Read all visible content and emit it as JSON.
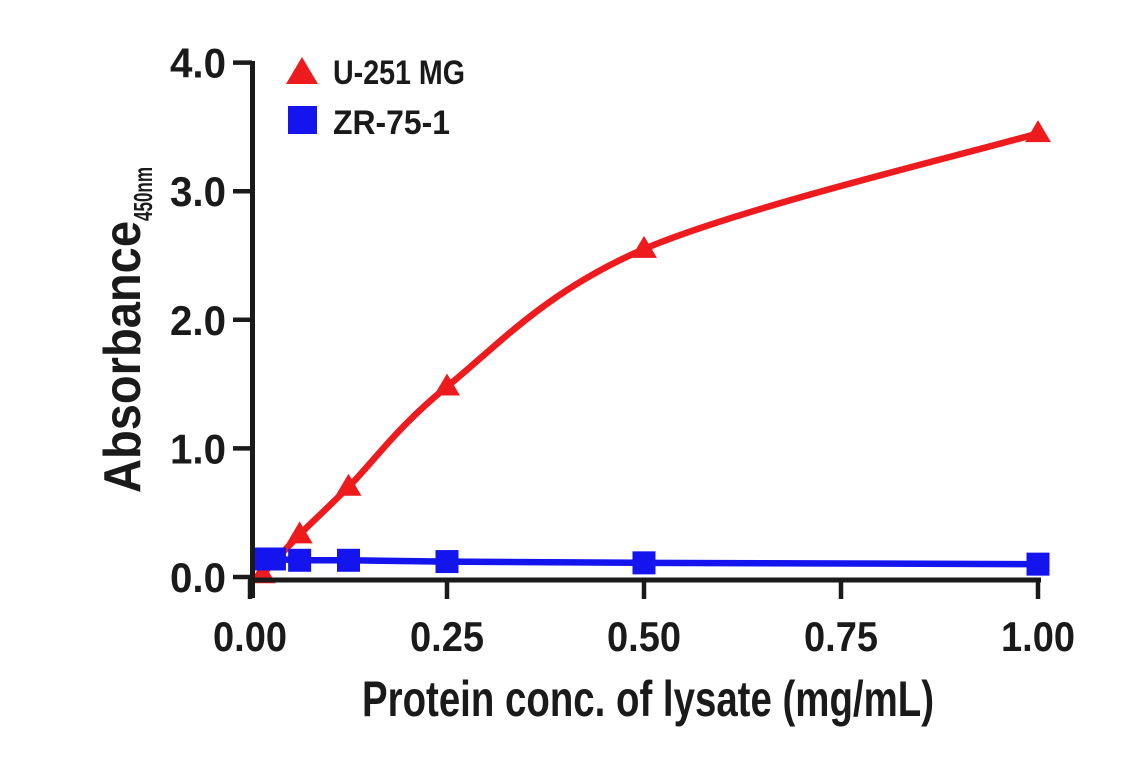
{
  "figure": {
    "background_color": "#ffffff",
    "axis_color": "#1a1a1a",
    "legend": {
      "position": "top-left",
      "items": [
        {
          "label": "U-251 MG",
          "marker": "triangle-icon",
          "color": "#ee1b1e"
        },
        {
          "label": "ZR-75-1",
          "marker": "square-icon",
          "color": "#1414ee"
        }
      ]
    },
    "axes": {
      "x": {
        "label": "Protein conc. of lysate (mg/mL)",
        "tick_labels": [
          "0.00",
          "0.25",
          "0.50",
          "0.75",
          "1.00"
        ],
        "tick_values": [
          0,
          0.25,
          0.5,
          0.75,
          1.0
        ],
        "range": [
          0,
          1
        ]
      },
      "y": {
        "label": "Absorbance",
        "label_subscript": "450nm",
        "tick_labels": [
          "0.0",
          "1.0",
          "2.0",
          "3.0",
          "4.0"
        ],
        "tick_values": [
          0,
          1,
          2,
          3,
          4
        ],
        "range": [
          0,
          4
        ]
      }
    }
  },
  "chart_data": {
    "type": "line",
    "title": "",
    "xlabel": "Protein conc. of lysate (mg/mL)",
    "ylabel": "Absorbance 450nm",
    "xlim": [
      0,
      1
    ],
    "ylim": [
      0,
      4
    ],
    "x_ticks": [
      0,
      0.25,
      0.5,
      0.75,
      1.0
    ],
    "y_ticks": [
      0,
      1.0,
      2.0,
      3.0,
      4.0
    ],
    "grid": false,
    "legend_position": "top-left",
    "series": [
      {
        "name": "U-251 MG",
        "color": "#ee1b1e",
        "marker": "triangle",
        "smooth": true,
        "points": [
          [
            0.016,
            0.02
          ],
          [
            0.063,
            0.33
          ],
          [
            0.125,
            0.7
          ],
          [
            0.25,
            1.48
          ],
          [
            0.5,
            2.55
          ],
          [
            1.0,
            3.45
          ]
        ]
      },
      {
        "name": "ZR-75-1",
        "color": "#1414ee",
        "marker": "square",
        "smooth": false,
        "points": [
          [
            0.016,
            0.14
          ],
          [
            0.031,
            0.14
          ],
          [
            0.063,
            0.13
          ],
          [
            0.125,
            0.13
          ],
          [
            0.25,
            0.12
          ],
          [
            0.5,
            0.11
          ],
          [
            1.0,
            0.1
          ]
        ]
      }
    ]
  }
}
